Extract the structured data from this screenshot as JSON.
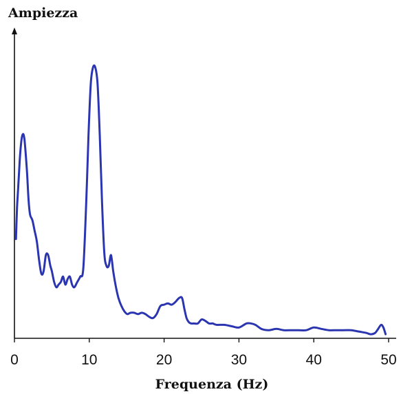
{
  "chart_data": {
    "type": "line",
    "title": "",
    "ylabel": "Ampiezza",
    "xlabel": "Frequenza (Hz)",
    "xlim": [
      0,
      50
    ],
    "ylim": [
      0,
      1
    ],
    "xticks": [
      0,
      10,
      20,
      30,
      40,
      50
    ],
    "grid": false,
    "legend": "none",
    "colors": {
      "line": "#2b35b0",
      "axis": "#111111"
    },
    "series": [
      {
        "x": [
          0.2,
          0.35,
          0.5,
          0.7,
          0.9,
          1.1,
          1.3,
          1.5,
          1.7,
          1.9,
          2.1,
          2.4,
          2.7,
          3.0,
          3.3,
          3.6,
          3.9,
          4.2,
          4.5,
          4.8,
          5.0,
          5.3,
          5.6,
          5.9,
          6.2,
          6.5,
          6.8,
          7.1,
          7.4,
          7.7,
          8.0,
          8.4,
          8.8,
          9.2,
          9.6,
          9.9,
          10.2,
          10.5,
          10.8,
          11.1,
          11.4,
          11.7,
          12.0,
          12.3,
          12.6,
          12.9,
          13.2,
          13.5,
          13.9,
          14.3,
          14.7,
          15.1,
          15.5,
          16.0,
          16.5,
          17.0,
          17.5,
          18.0,
          18.5,
          19.0,
          19.5,
          20.0,
          20.5,
          21.0,
          21.5,
          22.0,
          22.4,
          22.7,
          23.0,
          23.3,
          23.6,
          24.0,
          24.5,
          25.0,
          25.5,
          26.0,
          26.5,
          27.0,
          28.0,
          29.0,
          30.0,
          31.0,
          31.6,
          32.2,
          33.0,
          34.0,
          35.0,
          36.0,
          37.0,
          38.0,
          39.0,
          40.0,
          41.0,
          42.0,
          43.0,
          44.0,
          45.0,
          46.0,
          47.0,
          47.6,
          48.2,
          48.6,
          49.0,
          49.3,
          49.6
        ],
        "y": [
          0.36,
          0.48,
          0.55,
          0.65,
          0.72,
          0.75,
          0.74,
          0.68,
          0.6,
          0.5,
          0.45,
          0.43,
          0.39,
          0.35,
          0.28,
          0.23,
          0.24,
          0.3,
          0.3,
          0.26,
          0.24,
          0.2,
          0.18,
          0.19,
          0.2,
          0.22,
          0.19,
          0.21,
          0.22,
          0.19,
          0.18,
          0.2,
          0.22,
          0.25,
          0.5,
          0.75,
          0.94,
          1.0,
          1.0,
          0.94,
          0.75,
          0.5,
          0.31,
          0.26,
          0.26,
          0.3,
          0.24,
          0.19,
          0.14,
          0.11,
          0.09,
          0.08,
          0.085,
          0.085,
          0.08,
          0.085,
          0.08,
          0.07,
          0.065,
          0.08,
          0.11,
          0.115,
          0.12,
          0.115,
          0.125,
          0.14,
          0.14,
          0.1,
          0.065,
          0.05,
          0.045,
          0.045,
          0.045,
          0.06,
          0.055,
          0.045,
          0.045,
          0.04,
          0.04,
          0.035,
          0.03,
          0.045,
          0.045,
          0.04,
          0.025,
          0.02,
          0.025,
          0.02,
          0.02,
          0.02,
          0.02,
          0.03,
          0.025,
          0.02,
          0.02,
          0.02,
          0.02,
          0.015,
          0.01,
          0.005,
          0.01,
          0.025,
          0.04,
          0.03,
          0.005
        ]
      }
    ]
  }
}
